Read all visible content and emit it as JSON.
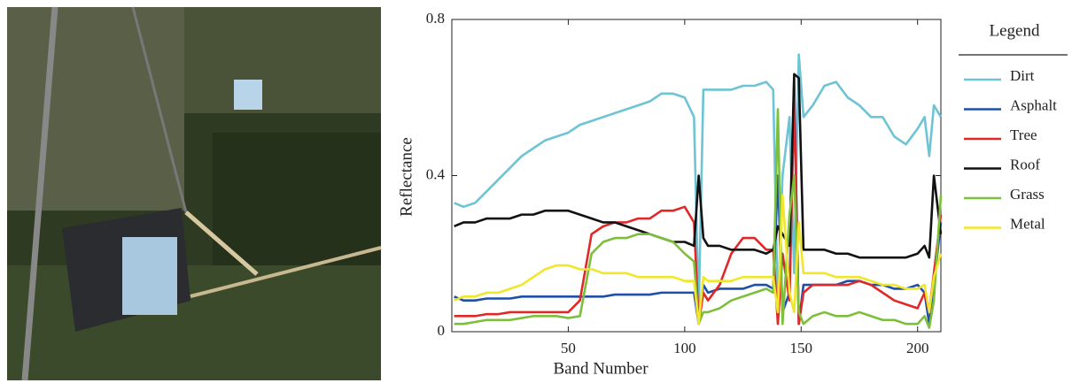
{
  "chart_data": {
    "type": "line",
    "xlabel": "Band Number",
    "ylabel": "Reflectance",
    "legend_title": "Legend",
    "x": [
      1,
      5,
      10,
      15,
      20,
      25,
      30,
      35,
      40,
      45,
      50,
      55,
      60,
      65,
      70,
      75,
      80,
      85,
      90,
      95,
      100,
      104,
      106,
      108,
      110,
      115,
      120,
      125,
      130,
      135,
      138,
      140,
      142,
      145,
      147,
      149,
      151,
      155,
      160,
      165,
      170,
      175,
      180,
      185,
      190,
      195,
      200,
      203,
      205,
      207,
      210
    ],
    "xlim": [
      0,
      210
    ],
    "xticks": [
      50,
      100,
      150,
      200
    ],
    "ylim": [
      0,
      0.8
    ],
    "yticks": [
      0,
      0.4,
      0.8
    ],
    "series": [
      {
        "name": "Dirt",
        "color": "#6cc4d4",
        "values": [
          0.33,
          0.32,
          0.33,
          0.36,
          0.39,
          0.42,
          0.45,
          0.47,
          0.49,
          0.5,
          0.51,
          0.53,
          0.54,
          0.55,
          0.56,
          0.57,
          0.58,
          0.59,
          0.61,
          0.61,
          0.6,
          0.55,
          0.05,
          0.62,
          0.62,
          0.62,
          0.62,
          0.63,
          0.63,
          0.64,
          0.62,
          0.05,
          0.4,
          0.55,
          0.15,
          0.71,
          0.55,
          0.58,
          0.63,
          0.64,
          0.6,
          0.58,
          0.55,
          0.55,
          0.5,
          0.48,
          0.52,
          0.55,
          0.45,
          0.58,
          0.55
        ]
      },
      {
        "name": "Asphalt",
        "color": "#1f4fa8",
        "values": [
          0.09,
          0.08,
          0.08,
          0.085,
          0.085,
          0.085,
          0.09,
          0.09,
          0.09,
          0.09,
          0.09,
          0.09,
          0.09,
          0.09,
          0.095,
          0.095,
          0.095,
          0.095,
          0.1,
          0.1,
          0.1,
          0.1,
          0.02,
          0.12,
          0.1,
          0.11,
          0.11,
          0.11,
          0.12,
          0.12,
          0.11,
          0.4,
          0.05,
          0.1,
          0.65,
          0.02,
          0.12,
          0.12,
          0.12,
          0.12,
          0.13,
          0.13,
          0.12,
          0.12,
          0.11,
          0.11,
          0.12,
          0.1,
          0.02,
          0.12,
          0.28
        ]
      },
      {
        "name": "Tree",
        "color": "#e02828",
        "values": [
          0.04,
          0.04,
          0.04,
          0.045,
          0.045,
          0.05,
          0.05,
          0.05,
          0.05,
          0.05,
          0.05,
          0.08,
          0.25,
          0.27,
          0.28,
          0.28,
          0.29,
          0.29,
          0.31,
          0.31,
          0.32,
          0.28,
          0.02,
          0.1,
          0.08,
          0.12,
          0.2,
          0.24,
          0.24,
          0.21,
          0.21,
          0.02,
          0.2,
          0.08,
          0.6,
          0.02,
          0.1,
          0.12,
          0.12,
          0.12,
          0.12,
          0.13,
          0.12,
          0.1,
          0.08,
          0.07,
          0.06,
          0.1,
          0.05,
          0.15,
          0.3
        ]
      },
      {
        "name": "Roof",
        "color": "#111111",
        "values": [
          0.27,
          0.28,
          0.28,
          0.29,
          0.29,
          0.29,
          0.3,
          0.3,
          0.31,
          0.31,
          0.31,
          0.3,
          0.29,
          0.28,
          0.28,
          0.27,
          0.26,
          0.25,
          0.24,
          0.23,
          0.23,
          0.22,
          0.4,
          0.24,
          0.22,
          0.22,
          0.21,
          0.21,
          0.21,
          0.2,
          0.21,
          0.27,
          0.25,
          0.22,
          0.66,
          0.65,
          0.21,
          0.21,
          0.21,
          0.2,
          0.2,
          0.19,
          0.19,
          0.19,
          0.19,
          0.19,
          0.2,
          0.22,
          0.19,
          0.4,
          0.25
        ]
      },
      {
        "name": "Grass",
        "color": "#7cbf3a",
        "values": [
          0.02,
          0.02,
          0.025,
          0.03,
          0.03,
          0.03,
          0.035,
          0.04,
          0.04,
          0.04,
          0.035,
          0.04,
          0.2,
          0.23,
          0.24,
          0.24,
          0.25,
          0.25,
          0.24,
          0.23,
          0.2,
          0.18,
          0.02,
          0.05,
          0.05,
          0.06,
          0.08,
          0.09,
          0.1,
          0.11,
          0.1,
          0.57,
          0.02,
          0.3,
          0.4,
          0.05,
          0.02,
          0.04,
          0.05,
          0.04,
          0.04,
          0.05,
          0.04,
          0.03,
          0.03,
          0.02,
          0.02,
          0.04,
          0.01,
          0.08,
          0.35
        ]
      },
      {
        "name": "Metal",
        "color": "#f0e62a",
        "values": [
          0.08,
          0.09,
          0.09,
          0.1,
          0.1,
          0.11,
          0.12,
          0.14,
          0.16,
          0.17,
          0.17,
          0.16,
          0.16,
          0.15,
          0.15,
          0.15,
          0.14,
          0.14,
          0.14,
          0.14,
          0.13,
          0.13,
          0.02,
          0.14,
          0.13,
          0.13,
          0.13,
          0.14,
          0.14,
          0.14,
          0.14,
          0.05,
          0.35,
          0.1,
          0.05,
          0.28,
          0.15,
          0.15,
          0.15,
          0.14,
          0.14,
          0.14,
          0.13,
          0.12,
          0.12,
          0.11,
          0.11,
          0.12,
          0.05,
          0.14,
          0.2
        ]
      }
    ]
  }
}
